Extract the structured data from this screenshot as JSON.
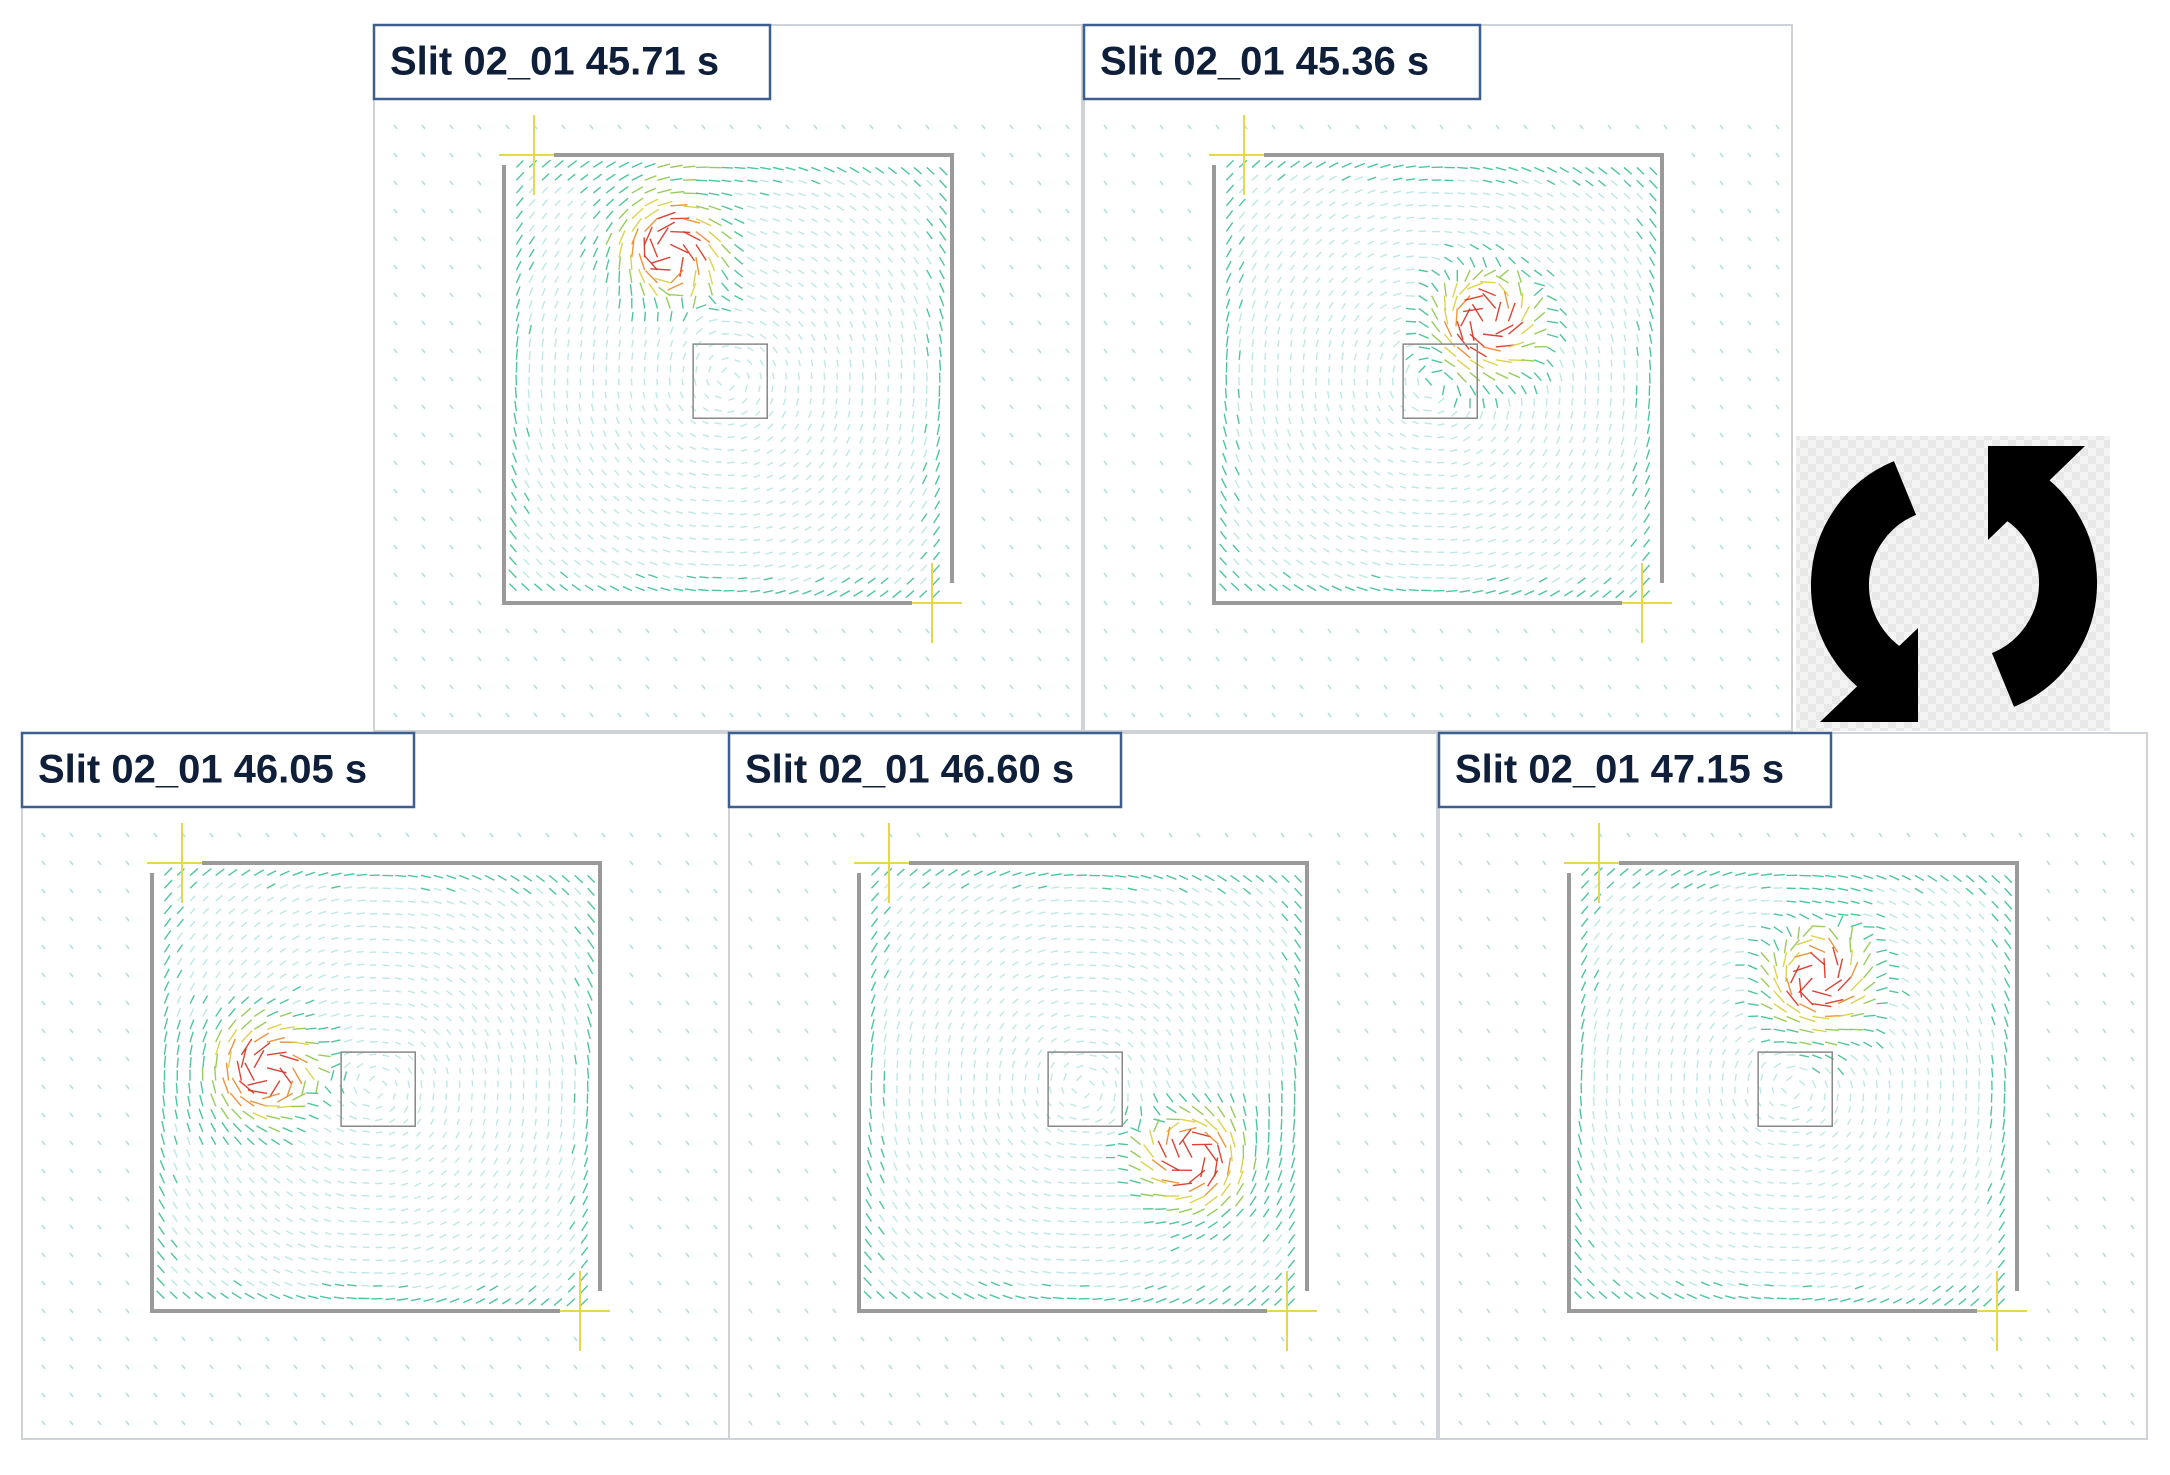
{
  "panels": [
    {
      "label": "Slit 02_01 45.71 s"
    },
    {
      "label": "Slit 02_01 45.36 s"
    },
    {
      "label": "Slit 02_01 46.05 s"
    },
    {
      "label": "Slit 02_01 46.60 s"
    },
    {
      "label": "Slit 02_01 47.15 s"
    }
  ]
}
